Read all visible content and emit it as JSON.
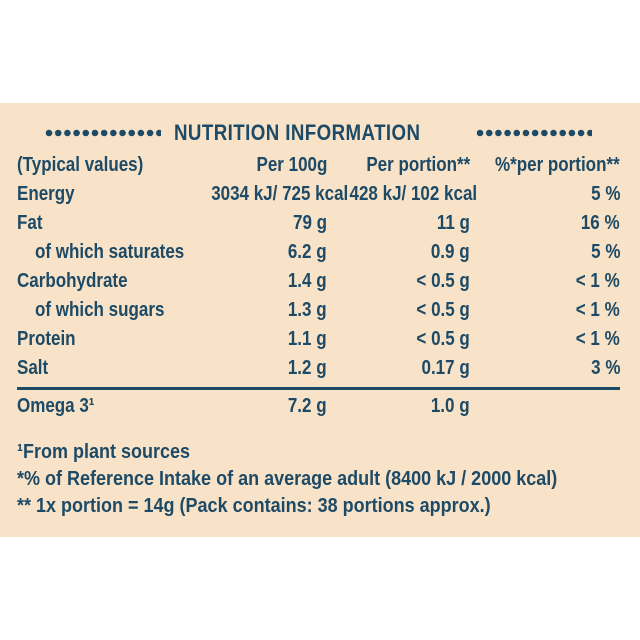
{
  "panel": {
    "title": "NUTRITION INFORMATION",
    "colors": {
      "panel_background": "#f8e3c8",
      "text_navy": "#1d4a66",
      "canvas": "#ffffff"
    },
    "header": {
      "col1": "(Typical values)",
      "col2": "Per 100g",
      "col3": "Per portion**",
      "col4": "%*per portion**"
    },
    "rows": [
      {
        "name": "Energy",
        "per_100g": "3034 kJ/ 725 kcal",
        "per_portion": "428 kJ/ 102 kcal",
        "pct_per_portion": "5 %"
      },
      {
        "name": "Fat",
        "per_100g": "79 g",
        "per_portion": "11 g",
        "pct_per_portion": "16 %"
      },
      {
        "name": "of which saturates",
        "per_100g": "6.2 g",
        "per_portion": "0.9 g",
        "pct_per_portion": "5 %"
      },
      {
        "name": "Carbohydrate",
        "per_100g": "1.4 g",
        "per_portion": "< 0.5 g",
        "pct_per_portion": "< 1 %"
      },
      {
        "name": "of which sugars",
        "per_100g": "1.3 g",
        "per_portion": "< 0.5 g",
        "pct_per_portion": "< 1 %"
      },
      {
        "name": "Protein",
        "per_100g": "1.1 g",
        "per_portion": "< 0.5 g",
        "pct_per_portion": "< 1 %"
      },
      {
        "name": "Salt",
        "per_100g": "1.2 g",
        "per_portion": "0.17 g",
        "pct_per_portion": "3 %"
      }
    ],
    "omega_row": {
      "name": "Omega 3¹",
      "per_100g": "7.2 g",
      "per_portion": "1.0 g",
      "pct_per_portion": ""
    },
    "footnotes": [
      "¹From plant sources",
      " *% of Reference Intake of an average adult (8400 kJ / 2000 kcal)",
      " ** 1x portion = 14g (Pack contains: 38 portions approx.)"
    ]
  }
}
